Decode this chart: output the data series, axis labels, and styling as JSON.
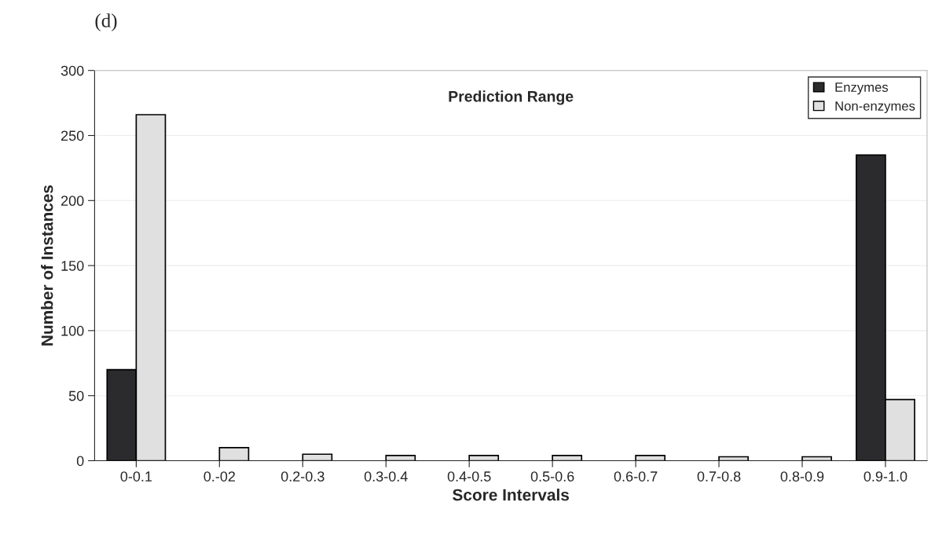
{
  "chart_data": {
    "type": "bar",
    "title": "Prediction Range",
    "xlabel": "Score Intervals",
    "ylabel": "Number of Instances",
    "annotations": [
      "(d)"
    ],
    "categories": [
      "0-0.1",
      "0.-02",
      "0.2-0.3",
      "0.3-0.4",
      "0.4-0.5",
      "0.5-0.6",
      "0.6-0.7",
      "0.7-0.8",
      "0.8-0.9",
      "0.9-1.0"
    ],
    "series": [
      {
        "name": "Enzymes",
        "color": "#2b2b2e",
        "values": [
          70,
          null,
          null,
          null,
          null,
          null,
          null,
          null,
          null,
          235
        ]
      },
      {
        "name": "Non-enzymes",
        "color": "#e0e0e0",
        "values": [
          266,
          10,
          5,
          4,
          4,
          4,
          4,
          3,
          3,
          47
        ]
      }
    ],
    "ylim": [
      0,
      300
    ],
    "yticks": [
      0,
      50,
      100,
      150,
      200,
      250,
      300
    ],
    "grid": "y",
    "legend": "top right"
  }
}
